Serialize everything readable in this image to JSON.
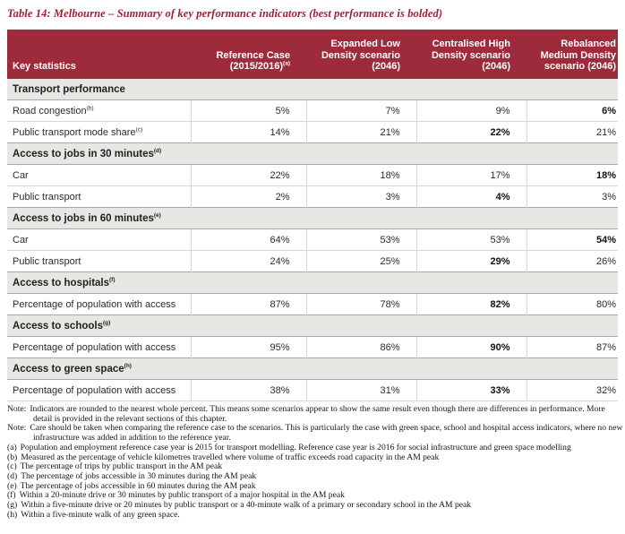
{
  "title": "Table 14: Melbourne – Summary of key performance indicators (best performance is bolded)",
  "colors": {
    "header_background": "#9d2b3b",
    "title_text": "#9b2134",
    "section_row_background": "#e8e7e3",
    "row_divider": "#d8d7d5",
    "section_divider": "#a9a8a6"
  },
  "table": {
    "key_col_header": "Key statistics",
    "columns": [
      {
        "label": "Reference Case (2015/2016)",
        "sup": "(a)"
      },
      {
        "label": "Expanded Low Density scenario (2046)",
        "sup": ""
      },
      {
        "label": "Centralised High Density scenario (2046)",
        "sup": ""
      },
      {
        "label": "Rebalanced Medium Density scenario (2046)",
        "sup": ""
      }
    ],
    "rows": [
      {
        "type": "section",
        "label": "Transport performance",
        "sup": ""
      },
      {
        "type": "data",
        "label": "Road congestion",
        "sup": "(b)",
        "values": [
          "5%",
          "7%",
          "9%",
          "6%"
        ],
        "bold": [
          false,
          false,
          false,
          true
        ]
      },
      {
        "type": "data",
        "label": "Public transport mode share",
        "sup": "(c)",
        "values": [
          "14%",
          "21%",
          "22%",
          "21%"
        ],
        "bold": [
          false,
          false,
          true,
          false
        ]
      },
      {
        "type": "section",
        "label": "Access to jobs in 30 minutes",
        "sup": "(d)"
      },
      {
        "type": "data",
        "label": "Car",
        "sup": "",
        "values": [
          "22%",
          "18%",
          "17%",
          "18%"
        ],
        "bold": [
          false,
          false,
          false,
          true
        ]
      },
      {
        "type": "data",
        "label": "Public transport",
        "sup": "",
        "values": [
          "2%",
          "3%",
          "4%",
          "3%"
        ],
        "bold": [
          false,
          false,
          true,
          false
        ]
      },
      {
        "type": "section",
        "label": "Access to jobs in 60 minutes",
        "sup": "(e)"
      },
      {
        "type": "data",
        "label": "Car",
        "sup": "",
        "values": [
          "64%",
          "53%",
          "53%",
          "54%"
        ],
        "bold": [
          false,
          false,
          false,
          true
        ]
      },
      {
        "type": "data",
        "label": "Public transport",
        "sup": "",
        "values": [
          "24%",
          "25%",
          "29%",
          "26%"
        ],
        "bold": [
          false,
          false,
          true,
          false
        ]
      },
      {
        "type": "section",
        "label": "Access to hospitals",
        "sup": "(f)"
      },
      {
        "type": "data",
        "label": "Percentage of population with access",
        "sup": "",
        "values": [
          "87%",
          "78%",
          "82%",
          "80%"
        ],
        "bold": [
          false,
          false,
          true,
          false
        ]
      },
      {
        "type": "section",
        "label": "Access to schools",
        "sup": "(g)"
      },
      {
        "type": "data",
        "label": "Percentage of population with access",
        "sup": "",
        "values": [
          "95%",
          "86%",
          "90%",
          "87%"
        ],
        "bold": [
          false,
          false,
          true,
          false
        ]
      },
      {
        "type": "section",
        "label": "Access to green space",
        "sup": "(h)"
      },
      {
        "type": "data",
        "label": "Percentage of population with access",
        "sup": "",
        "values": [
          "38%",
          "31%",
          "33%",
          "32%"
        ],
        "bold": [
          false,
          false,
          true,
          false
        ]
      }
    ]
  },
  "notes": [
    {
      "prefix": "Note:",
      "text": "Indicators are rounded to the nearest whole percent. This means some scenarios appear to show the same result even though there are differences in performance. More detail is provided in the relevant sections of this chapter."
    },
    {
      "prefix": "Note:",
      "text": "Care should be taken when comparing the reference case to the scenarios. This is particularly the case with green space, school and hospital access indicators, where no new infrastructure was added in addition to the reference year."
    },
    {
      "prefix": "(a)",
      "text": "Population and employment reference case year is 2015 for transport modelling. Reference case year is 2016 for social infrastructure and green space modelling"
    },
    {
      "prefix": "(b)",
      "text": "Measured as the percentage of vehicle kilometres travelled where volume of traffic exceeds road capacity in the AM peak"
    },
    {
      "prefix": "(c)",
      "text": "The percentage of trips by public transport in the AM peak"
    },
    {
      "prefix": "(d)",
      "text": "The percentage of jobs accessible in 30 minutes during the AM peak"
    },
    {
      "prefix": "(e)",
      "text": "The percentage of jobs accessible in 60 minutes during the AM peak"
    },
    {
      "prefix": "(f)",
      "text": "Within a 20-minute drive or 30 minutes by public transport of a major hospital in the AM peak"
    },
    {
      "prefix": "(g)",
      "text": "Within a five-minute drive or 20 minutes by public transport or a 40-minute walk of a primary or secondary school in the AM peak"
    },
    {
      "prefix": "(h)",
      "text": "Within a five-minute walk of any green space."
    }
  ]
}
